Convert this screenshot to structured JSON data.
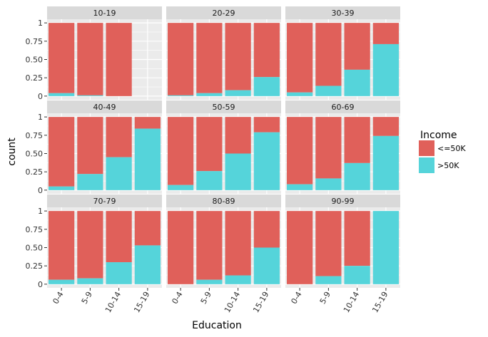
{
  "chart_data": {
    "type": "bar",
    "stacked": true,
    "position": "fill",
    "title": "",
    "xlabel": "Education",
    "ylabel": "count",
    "ylim": [
      0,
      1
    ],
    "yticks": [
      0,
      0.25,
      0.5,
      0.75,
      1
    ],
    "ytick_labels": [
      "0",
      "0.25",
      "0.50",
      "0.75",
      "1"
    ],
    "categories": [
      "0-4",
      "5-9",
      "10-14",
      "15-19"
    ],
    "legend": {
      "title": "Income",
      "placement": "right",
      "entries": [
        {
          "label": "<=50K",
          "color": "#E0605A"
        },
        {
          "label": ">50K",
          "color": "#55D4DA"
        }
      ]
    },
    "colors": {
      "le50k": "#E0605A",
      "gt50k": "#55D4DA",
      "panel_bg": "#EBEBEB",
      "strip_bg": "#D9D9D9"
    },
    "panels": [
      {
        "label": "10-19",
        "gt50k_share": [
          0.04,
          0.01,
          0.0,
          null
        ]
      },
      {
        "label": "20-29",
        "gt50k_share": [
          0.01,
          0.04,
          0.08,
          0.26
        ]
      },
      {
        "label": "30-39",
        "gt50k_share": [
          0.05,
          0.14,
          0.36,
          0.71
        ]
      },
      {
        "label": "40-49",
        "gt50k_share": [
          0.05,
          0.22,
          0.45,
          0.84
        ]
      },
      {
        "label": "50-59",
        "gt50k_share": [
          0.07,
          0.26,
          0.5,
          0.79
        ]
      },
      {
        "label": "60-69",
        "gt50k_share": [
          0.08,
          0.16,
          0.37,
          0.74
        ]
      },
      {
        "label": "70-79",
        "gt50k_share": [
          0.06,
          0.08,
          0.3,
          0.53
        ]
      },
      {
        "label": "80-89",
        "gt50k_share": [
          0.0,
          0.06,
          0.12,
          0.5
        ]
      },
      {
        "label": "90-99",
        "gt50k_share": [
          0.0,
          0.11,
          0.25,
          1.0
        ]
      }
    ]
  }
}
